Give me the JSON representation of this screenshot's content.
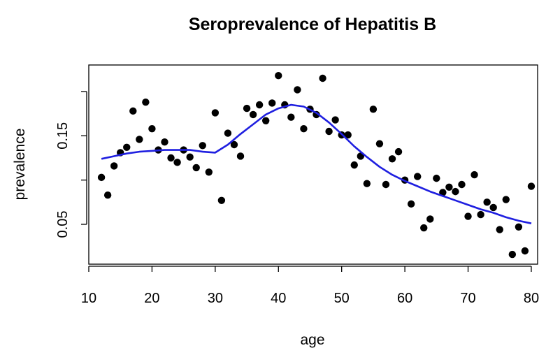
{
  "chart_data": {
    "type": "scatter",
    "title": "Seroprevalence of Hepatitis B",
    "xlabel": "age",
    "ylabel": "prevalence",
    "xlim": [
      10,
      81
    ],
    "ylim": [
      0.005,
      0.23
    ],
    "x_ticks": [
      10,
      20,
      30,
      40,
      50,
      60,
      70,
      80
    ],
    "x_tick_labels": [
      "10",
      "20",
      "30",
      "40",
      "50",
      "60",
      "70",
      "80"
    ],
    "y_ticks": [
      0.05,
      0.1,
      0.15,
      0.2
    ],
    "y_tick_labels": [
      "0.05",
      "",
      "0.15",
      ""
    ],
    "grid": false,
    "colors": {
      "points": "#000000",
      "smooth": "#1f1fe0"
    },
    "points": {
      "x": [
        12,
        13,
        14,
        15,
        16,
        17,
        18,
        19,
        20,
        21,
        22,
        23,
        24,
        25,
        26,
        27,
        28,
        29,
        30,
        31,
        32,
        33,
        34,
        35,
        36,
        37,
        38,
        39,
        40,
        41,
        42,
        43,
        44,
        45,
        46,
        47,
        48,
        49,
        50,
        51,
        52,
        53,
        54,
        55,
        56,
        57,
        58,
        59,
        60,
        61,
        62,
        63,
        64,
        65,
        66,
        67,
        68,
        69,
        70,
        71,
        72,
        73,
        74,
        75,
        76,
        77,
        78,
        79,
        80
      ],
      "y": [
        0.103,
        0.083,
        0.116,
        0.131,
        0.137,
        0.178,
        0.146,
        0.188,
        0.158,
        0.134,
        0.143,
        0.125,
        0.12,
        0.134,
        0.126,
        0.114,
        0.139,
        0.109,
        0.176,
        0.077,
        0.153,
        0.14,
        0.127,
        0.181,
        0.174,
        0.185,
        0.167,
        0.187,
        0.218,
        0.185,
        0.171,
        0.202,
        0.158,
        0.18,
        0.174,
        0.215,
        0.155,
        0.168,
        0.151,
        0.151,
        0.117,
        0.127,
        0.096,
        0.18,
        0.141,
        0.095,
        0.124,
        0.132,
        0.1,
        0.073,
        0.104,
        0.046,
        0.056,
        0.102,
        0.086,
        0.092,
        0.087,
        0.095,
        0.059,
        0.106,
        0.061,
        0.075,
        0.069,
        0.044,
        0.078,
        0.016,
        0.047,
        0.02,
        0.093
      ]
    },
    "smooth": {
      "x": [
        12,
        14,
        16,
        18,
        20,
        22,
        24,
        26,
        28,
        30,
        32,
        34,
        36,
        38,
        40,
        42,
        44,
        46,
        48,
        50,
        52,
        54,
        56,
        58,
        60,
        62,
        64,
        66,
        68,
        70,
        72,
        74,
        76,
        78,
        80
      ],
      "y": [
        0.124,
        0.127,
        0.13,
        0.132,
        0.133,
        0.134,
        0.134,
        0.134,
        0.132,
        0.131,
        0.14,
        0.152,
        0.163,
        0.174,
        0.181,
        0.185,
        0.183,
        0.176,
        0.165,
        0.152,
        0.138,
        0.126,
        0.115,
        0.106,
        0.099,
        0.093,
        0.087,
        0.082,
        0.077,
        0.072,
        0.067,
        0.063,
        0.058,
        0.054,
        0.051
      ]
    }
  }
}
